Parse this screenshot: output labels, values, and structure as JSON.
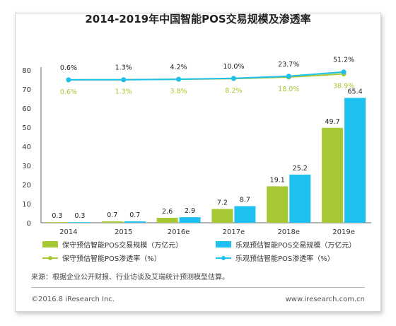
{
  "chart_data": {
    "type": "bar",
    "title": "2014-2019年中国智能POS交易规模及渗透率",
    "categories": [
      "2014",
      "2015",
      "2016e",
      "2017e",
      "2018e",
      "2019e"
    ],
    "ylim": [
      0,
      80
    ],
    "yticks": [
      0,
      10,
      20,
      30,
      40,
      50,
      60,
      70,
      80
    ],
    "series": [
      {
        "name": "保守预估智能POS交易规模（万亿元）",
        "values": [
          0.3,
          0.7,
          2.6,
          7.2,
          19.1,
          49.7
        ],
        "labels": [
          "0.3",
          "0.7",
          "2.6",
          "7.2",
          "19.1",
          "49.7"
        ],
        "color": "#a6c832"
      },
      {
        "name": "乐观预估智能POS交易规模（万亿元）",
        "values": [
          0.3,
          0.7,
          2.9,
          8.7,
          25.2,
          65.4
        ],
        "labels": [
          "0.3",
          "0.7",
          "2.9",
          "8.7",
          "25.2",
          "65.4"
        ],
        "color": "#1ec0ef"
      }
    ],
    "lines": [
      {
        "name": "保守预估智能POS渗透率（%）",
        "values": [
          0.6,
          1.3,
          3.8,
          8.2,
          18.0,
          38.9
        ],
        "labels": [
          "0.6%",
          "1.3%",
          "3.8%",
          "8.2%",
          "18.0%",
          "38.9%"
        ],
        "color": "#a6c832"
      },
      {
        "name": "乐观预估智能POS渗透率（%）",
        "values": [
          0.6,
          1.3,
          4.2,
          10.0,
          23.7,
          51.2
        ],
        "labels": [
          "0.6%",
          "1.3%",
          "4.2%",
          "10.0%",
          "23.7%",
          "51.2%"
        ],
        "color": "#1ec0ef"
      }
    ],
    "grid": false,
    "legend_position": "bottom"
  },
  "source": "来源：根据企业公开财报、行业访谈及艾瑞统计预测模型估算。",
  "copyright": "©2016.8 iResearch Inc.",
  "website": "www.iresearch.com.cn"
}
